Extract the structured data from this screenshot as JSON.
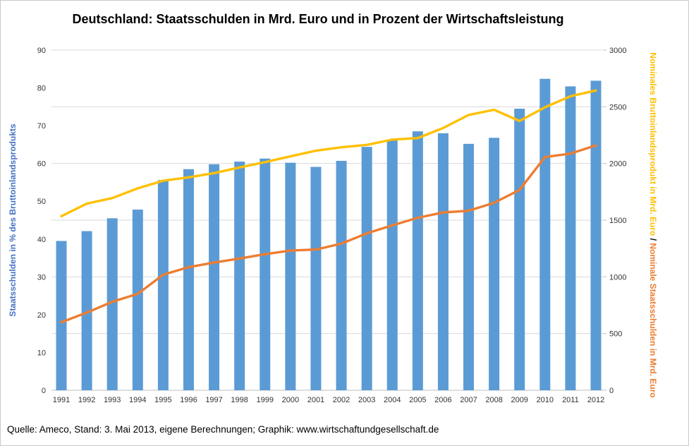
{
  "page": {
    "title": "Deutschland: Staatsschulden in Mrd. Euro und in Prozent der Wirtschaftsleistung",
    "footer": "Quelle: Ameco, Stand: 3. Mai 2013,  eigene Berechnungen; Graphik: www.wirtschaftundgesellschaft.de"
  },
  "axes": {
    "left_title": "Staatsschulden in % des Bruttoinlandsprodukts",
    "right_title_gdp": "Nominales Bruttoinlandsprodukt in Mrd. Euro",
    "right_title_separator": " / ",
    "right_title_debt": "Nominale Staatsschulden in Mrd. Euro"
  },
  "colors": {
    "bar": "#5B9BD5",
    "gdp_line": "#FFC000",
    "debt_line": "#ED7D31",
    "left_axis_title": "#4472C4",
    "gridline": "#D9D9D9",
    "axis_line": "#BFBFBF",
    "tick_text": "#333333"
  },
  "chart_data": {
    "type": "combo",
    "title": "Deutschland: Staatsschulden in Mrd. Euro und in Prozent der Wirtschaftsleistung",
    "categories": [
      1991,
      1992,
      1993,
      1994,
      1995,
      1996,
      1997,
      1998,
      1999,
      2000,
      2001,
      2002,
      2003,
      2004,
      2005,
      2006,
      2007,
      2008,
      2009,
      2010,
      2011,
      2012
    ],
    "series": [
      {
        "name": "Staatsschulden in % des Bruttoinlandsprodukts",
        "type": "bar",
        "axis": "left",
        "color": "#5B9BD5",
        "values": [
          39.5,
          42.1,
          45.5,
          47.8,
          55.6,
          58.5,
          59.8,
          60.5,
          61.3,
          60.2,
          59.1,
          60.7,
          64.4,
          66.2,
          68.5,
          68.0,
          65.2,
          66.8,
          74.5,
          82.4,
          80.4,
          81.9
        ]
      },
      {
        "name": "Nominales Bruttoinlandsprodukt in Mrd. Euro",
        "type": "line",
        "axis": "right",
        "color": "#FFC000",
        "values": [
          1535,
          1646,
          1695,
          1781,
          1848,
          1878,
          1915,
          1965,
          2012,
          2063,
          2113,
          2143,
          2164,
          2211,
          2224,
          2313,
          2428,
          2474,
          2375,
          2496,
          2593,
          2644
        ]
      },
      {
        "name": "Nominale Staatsschulden in Mrd. Euro",
        "type": "line",
        "axis": "right",
        "color": "#ED7D31",
        "values": [
          600,
          685,
          780,
          850,
          1019,
          1086,
          1126,
          1162,
          1200,
          1232,
          1241,
          1293,
          1384,
          1454,
          1521,
          1568,
          1583,
          1653,
          1767,
          2057,
          2087,
          2160
        ]
      }
    ],
    "left_axis": {
      "label": "Staatsschulden in % des Bruttoinlandsprodukts",
      "min": 0,
      "max": 90,
      "tick_step": 10
    },
    "right_axis": {
      "label": "Nominales Bruttoinlandsprodukt in Mrd. Euro / Nominale Staatsschulden in Mrd. Euro",
      "min": 0,
      "max": 3000,
      "tick_step": 500
    },
    "gridlines": "horizontal, aligned to right axis every 500",
    "legend": "none"
  }
}
